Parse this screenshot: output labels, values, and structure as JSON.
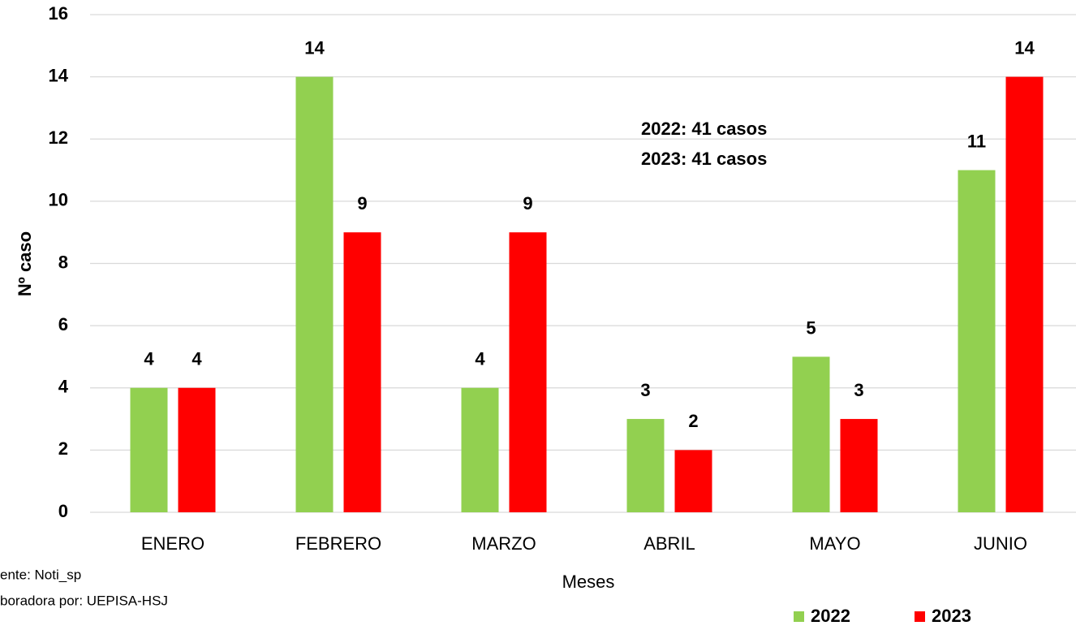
{
  "chart_data": {
    "type": "bar",
    "categories": [
      "ENERO",
      "FEBRERO",
      "MARZO",
      "ABRIL",
      "MAYO",
      "JUNIO"
    ],
    "series": [
      {
        "name": "2022",
        "color": "#92d050",
        "values": [
          4,
          14,
          4,
          3,
          5,
          11
        ]
      },
      {
        "name": "2023",
        "color": "#ff0000",
        "values": [
          4,
          9,
          9,
          2,
          3,
          14
        ]
      }
    ],
    "ylim": [
      0,
      16
    ],
    "yticks": [
      0,
      2,
      4,
      6,
      8,
      10,
      12,
      14,
      16
    ],
    "grid": true,
    "y_label": "Nº caso",
    "x_label": "Meses",
    "annotations": [
      "2022: 41 casos",
      "2023: 41 casos"
    ],
    "source": [
      "ente: Noti_sp",
      "boradora por: UEPISA-HSJ"
    ],
    "legend": "bottom-right"
  }
}
